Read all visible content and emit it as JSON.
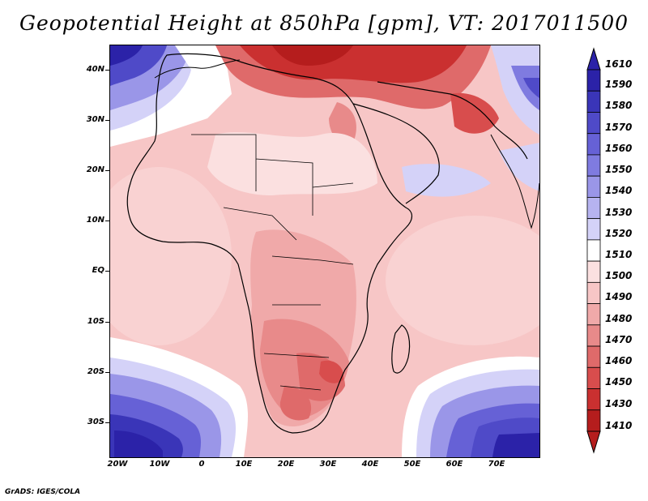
{
  "title": "Geopotential Height at 850hPa [gpm], VT: 2017011500",
  "footer": "GrADS: IGES/COLA",
  "lat_labels": [
    "40N",
    "30N",
    "20N",
    "10N",
    "EQ",
    "10S",
    "20S",
    "30S"
  ],
  "lon_labels": [
    "20W",
    "10W",
    "0",
    "10E",
    "20E",
    "30E",
    "40E",
    "50E",
    "60E",
    "70E"
  ],
  "colorbar": {
    "levels": [
      "1610",
      "1590",
      "1580",
      "1570",
      "1560",
      "1550",
      "1540",
      "1530",
      "1520",
      "1510",
      "1500",
      "1490",
      "1480",
      "1470",
      "1460",
      "1450",
      "1430",
      "1410"
    ],
    "colors": [
      "#2b22a8",
      "#3a35b8",
      "#4f4ac8",
      "#6661d6",
      "#7f7be0",
      "#9a96e8",
      "#b6b3f0",
      "#d4d2f8",
      "#ffffff",
      "#fbe0e0",
      "#f7c6c6",
      "#f0a9a9",
      "#e88a8a",
      "#df6a6a",
      "#d84d4d",
      "#ca3030",
      "#b51d1d"
    ]
  }
}
